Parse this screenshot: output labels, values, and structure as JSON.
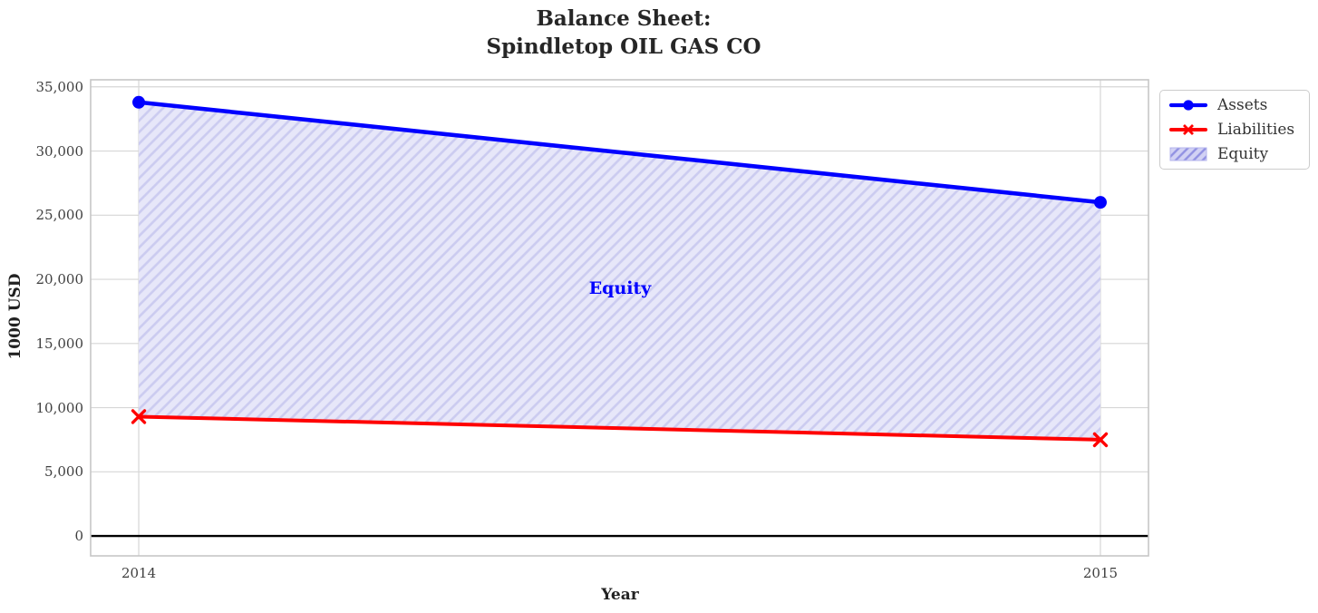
{
  "title": {
    "line1": "Balance Sheet:",
    "line2": "Spindletop OIL GAS CO"
  },
  "axes": {
    "xlabel": "Year",
    "ylabel": "1000 USD"
  },
  "annotation": {
    "text": "Equity",
    "color": "#0000ff"
  },
  "legend": {
    "items": [
      {
        "label": "Assets",
        "marker": "circle",
        "color": "#0000ff"
      },
      {
        "label": "Liabilities",
        "marker": "x",
        "color": "#ff0000"
      },
      {
        "label": "Equity",
        "marker": "hatched-patch",
        "color": "#dcdcf5"
      }
    ]
  },
  "chart_data": {
    "type": "line",
    "title": "Balance Sheet: Spindletop OIL GAS CO",
    "xlabel": "Year",
    "ylabel": "1000 USD",
    "x": [
      2014,
      2015
    ],
    "xticklabels": [
      "2014",
      "2015"
    ],
    "series": [
      {
        "name": "Assets",
        "color": "#0000ff",
        "marker": "circle",
        "values": [
          33800,
          26000
        ]
      },
      {
        "name": "Liabilities",
        "color": "#ff0000",
        "marker": "x",
        "values": [
          9300,
          7500
        ]
      }
    ],
    "area": {
      "name": "Equity",
      "between": [
        "Assets",
        "Liabilities"
      ],
      "values": [
        24500,
        18500
      ],
      "fill": "#e7e7f9",
      "hatch": "//",
      "hatch_color": "#cbcbf0"
    },
    "yticks": [
      0,
      5000,
      10000,
      15000,
      20000,
      25000,
      30000,
      35000
    ],
    "yticklabels": [
      "0",
      "5,000",
      "10,000",
      "15,000",
      "20,000",
      "25,000",
      "30,000",
      "35,000"
    ],
    "ylim": [
      -1550,
      35550
    ],
    "xlim": [
      2013.95,
      2015.05
    ],
    "zero_line": 0,
    "grid": true,
    "grid_color": "#d6d6d6",
    "legend_position": "outside upper right"
  }
}
